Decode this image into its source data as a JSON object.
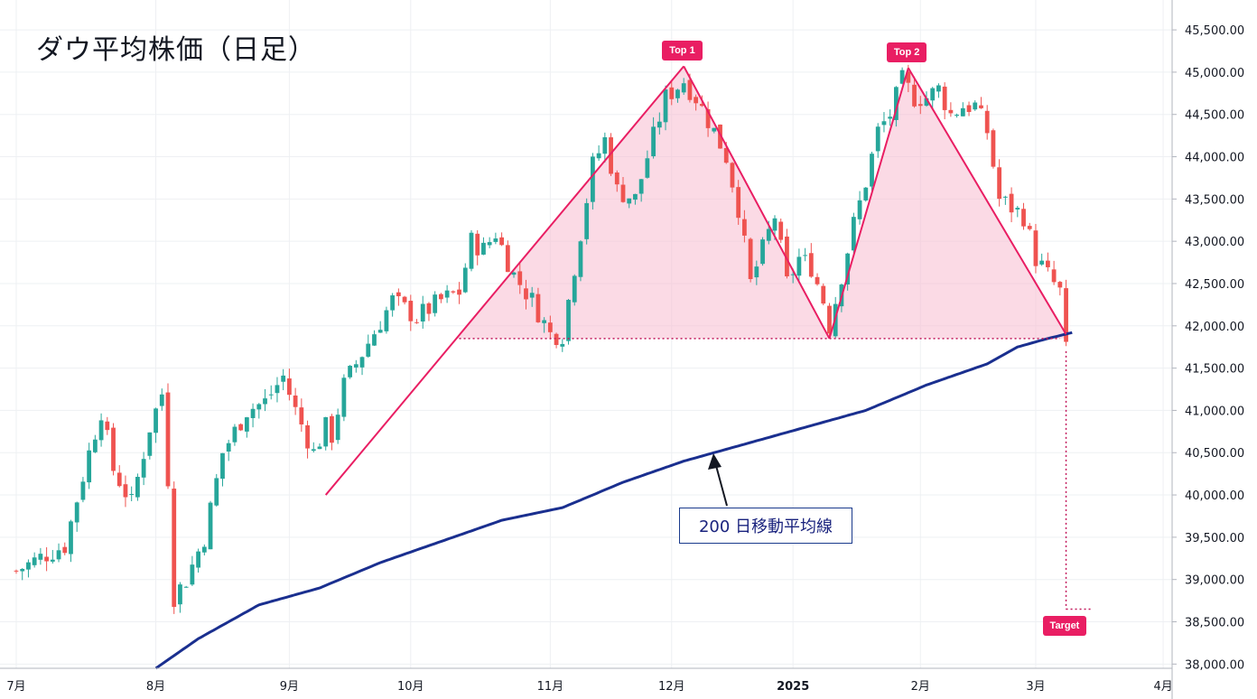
{
  "title": "ダウ平均株価（日足）",
  "colors": {
    "up": "#26a69a",
    "down": "#ef5350",
    "ma": "#1a2f8f",
    "pattern": "#e91e63",
    "fill": "#f8bbd0"
  },
  "annotations": {
    "top1": "Top 1",
    "top2": "Top 2",
    "target": "Target",
    "ma_label": "200 日移動平均線"
  },
  "chart_data": {
    "type": "candlestick",
    "title": "ダウ平均株価（日足）",
    "y_range": [
      37950,
      45800
    ],
    "y_ticks": [
      38000,
      38500,
      39000,
      39500,
      40000,
      40500,
      41000,
      41500,
      42000,
      42500,
      43000,
      43500,
      44000,
      44500,
      45000,
      45500
    ],
    "y_tick_labels": [
      "38,000.00",
      "38,500.00",
      "39,000.00",
      "39,500.00",
      "40,000.00",
      "40,500.00",
      "41,000.00",
      "41,500.00",
      "42,000.00",
      "42,500.00",
      "43,000.00",
      "43,500.00",
      "44,000.00",
      "44,500.00",
      "45,000.00",
      "45,500.00"
    ],
    "x_labels": [
      {
        "label": "7月",
        "day": 0,
        "bold": false
      },
      {
        "label": "8月",
        "day": 23,
        "bold": false
      },
      {
        "label": "9月",
        "day": 45,
        "bold": false
      },
      {
        "label": "10月",
        "day": 65,
        "bold": false
      },
      {
        "label": "11月",
        "day": 88,
        "bold": false
      },
      {
        "label": "12月",
        "day": 108,
        "bold": false
      },
      {
        "label": "2025",
        "day": 128,
        "bold": true
      },
      {
        "label": "2月",
        "day": 149,
        "bold": false
      },
      {
        "label": "3月",
        "day": 168,
        "bold": false
      },
      {
        "label": "4月",
        "day": 189,
        "bold": false
      }
    ],
    "price_path": [
      [
        0,
        39100
      ],
      [
        5,
        39300
      ],
      [
        8,
        39400
      ],
      [
        12,
        40500
      ],
      [
        14,
        41000
      ],
      [
        16,
        40300
      ],
      [
        19,
        39900
      ],
      [
        22,
        40800
      ],
      [
        24,
        41200
      ],
      [
        25,
        40200
      ],
      [
        26,
        38800
      ],
      [
        28,
        39000
      ],
      [
        31,
        39500
      ],
      [
        34,
        40500
      ],
      [
        38,
        41000
      ],
      [
        41,
        41100
      ],
      [
        44,
        41400
      ],
      [
        46,
        41000
      ],
      [
        49,
        40500
      ],
      [
        51,
        40800
      ],
      [
        52,
        40700
      ],
      [
        54,
        41300
      ],
      [
        58,
        41800
      ],
      [
        62,
        42300
      ],
      [
        66,
        42100
      ],
      [
        70,
        42300
      ],
      [
        73,
        42400
      ],
      [
        75,
        43000
      ],
      [
        77,
        42900
      ],
      [
        79,
        43100
      ],
      [
        82,
        42600
      ],
      [
        85,
        42300
      ],
      [
        88,
        41900
      ],
      [
        90,
        41900
      ],
      [
        92,
        42700
      ],
      [
        95,
        43900
      ],
      [
        97,
        44200
      ],
      [
        99,
        43600
      ],
      [
        102,
        43500
      ],
      [
        104,
        44000
      ],
      [
        107,
        44700
      ],
      [
        110,
        44900
      ],
      [
        112,
        44700
      ],
      [
        115,
        44300
      ],
      [
        117,
        44000
      ],
      [
        119,
        43400
      ],
      [
        121,
        42500
      ],
      [
        123,
        42900
      ],
      [
        125,
        43300
      ],
      [
        127,
        42500
      ],
      [
        129,
        42800
      ],
      [
        131,
        42700
      ],
      [
        133,
        42300
      ],
      [
        134,
        42000
      ],
      [
        136,
        42600
      ],
      [
        138,
        43200
      ],
      [
        140,
        43700
      ],
      [
        142,
        44300
      ],
      [
        144,
        44500
      ],
      [
        146,
        44900
      ],
      [
        148,
        44700
      ],
      [
        150,
        44700
      ],
      [
        152,
        44800
      ],
      [
        154,
        44500
      ],
      [
        156,
        44600
      ],
      [
        158,
        44600
      ],
      [
        160,
        44300
      ],
      [
        162,
        43500
      ],
      [
        164,
        43400
      ],
      [
        166,
        43300
      ],
      [
        168,
        42800
      ],
      [
        170,
        42600
      ],
      [
        172,
        42400
      ],
      [
        173,
        41700
      ]
    ],
    "ma200_path": [
      [
        23,
        37950
      ],
      [
        30,
        38300
      ],
      [
        40,
        38700
      ],
      [
        50,
        38900
      ],
      [
        60,
        39200
      ],
      [
        70,
        39450
      ],
      [
        80,
        39700
      ],
      [
        90,
        39850
      ],
      [
        100,
        40150
      ],
      [
        110,
        40400
      ],
      [
        120,
        40600
      ],
      [
        130,
        40800
      ],
      [
        140,
        41000
      ],
      [
        150,
        41300
      ],
      [
        160,
        41550
      ],
      [
        165,
        41750
      ],
      [
        170,
        41850
      ],
      [
        174,
        41920
      ]
    ],
    "pattern_points": [
      {
        "name": "start",
        "day": 51,
        "value": 40000
      },
      {
        "name": "top1",
        "day": 110,
        "value": 45070
      },
      {
        "name": "valley",
        "day": 134,
        "value": 41850
      },
      {
        "name": "top2",
        "day": 147,
        "value": 45050
      },
      {
        "name": "end",
        "day": 173,
        "value": 41900
      }
    ],
    "neckline": {
      "value": 41850,
      "from_day": 73,
      "to_day": 172
    },
    "target": {
      "day": 173,
      "value": 38650,
      "label": "Target"
    },
    "series": [
      {
        "name": "200 日移動平均線",
        "type": "line"
      }
    ],
    "labels": [
      "Top 1",
      "Top 2",
      "Target"
    ]
  }
}
